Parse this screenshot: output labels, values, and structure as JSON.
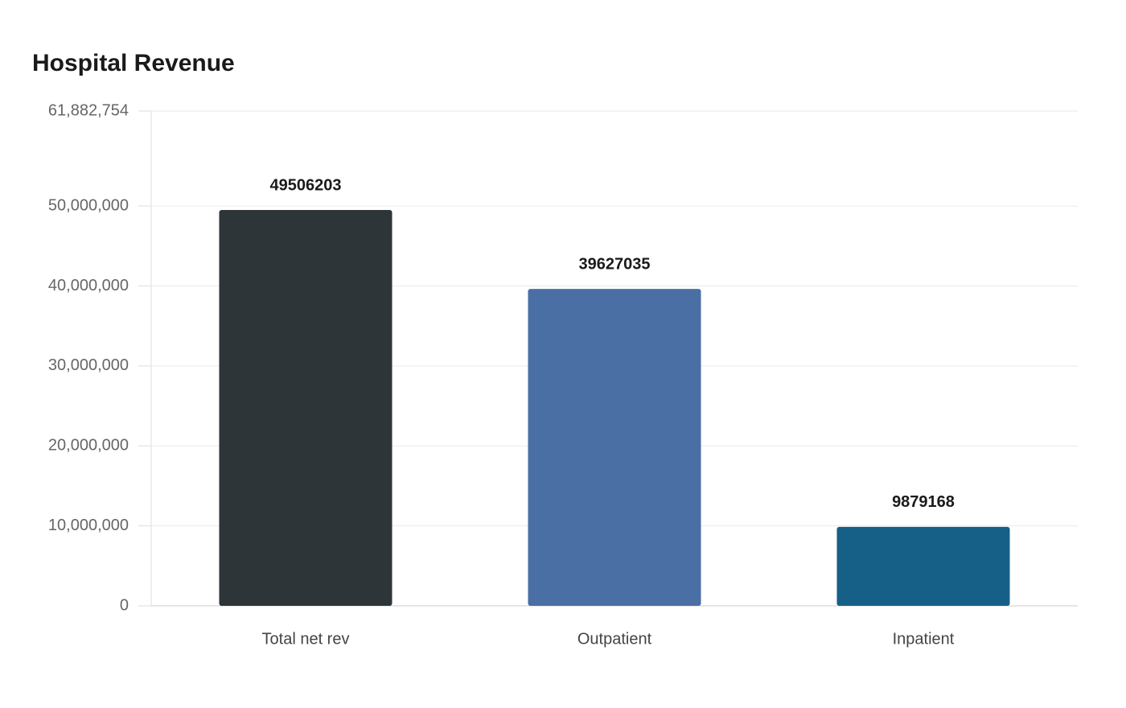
{
  "chart_data": {
    "type": "bar",
    "title": "Hospital Revenue",
    "categories": [
      "Total net rev",
      "Outpatient",
      "Inpatient"
    ],
    "values": [
      49506203,
      39627035,
      9879168
    ],
    "colors": [
      "#2e3538",
      "#4a6fa5",
      "#166088"
    ],
    "ylim": [
      0,
      61882754
    ],
    "yticks": [
      0,
      {
        "value": 10000000,
        "label": "10,000,000"
      },
      {
        "value": 20000000,
        "label": "20,000,000"
      },
      {
        "value": 30000000,
        "label": "30,000,000"
      },
      {
        "value": 40000000,
        "label": "40,000,000"
      },
      {
        "value": 50000000,
        "label": "50,000,000"
      },
      {
        "value": 61882754,
        "label": "61,882,754"
      }
    ],
    "grid": true
  }
}
